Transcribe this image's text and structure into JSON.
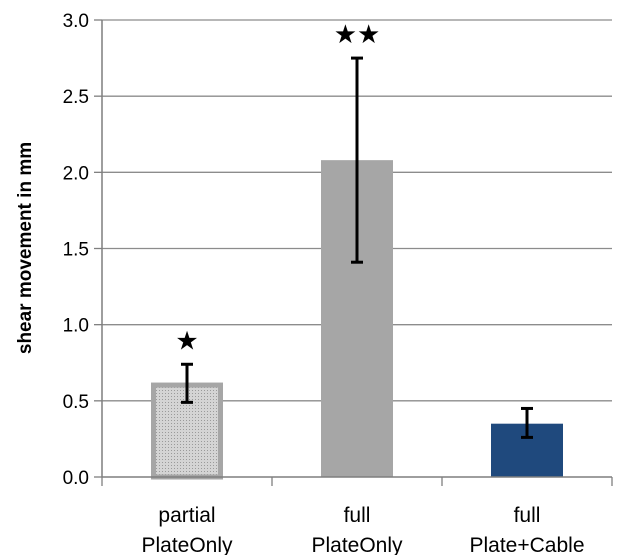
{
  "chart_data": {
    "type": "bar",
    "categories": [
      [
        "partial",
        "PlateOnly"
      ],
      [
        "full",
        "PlateOnly"
      ],
      [
        "full",
        "Plate+Cable"
      ]
    ],
    "values": [
      0.62,
      2.08,
      0.35
    ],
    "error_low": [
      0.49,
      1.41,
      0.26
    ],
    "error_high": [
      0.74,
      2.75,
      0.45
    ],
    "annotations": [
      "★",
      "★★",
      ""
    ],
    "bar_colors": [
      "#d0d0d0",
      "#a6a6a6",
      "#1f497d"
    ],
    "bar_patterns": [
      "dotted",
      "solid",
      "solid"
    ],
    "ylabel": "shear movement in mm",
    "xlabel": "",
    "title": "",
    "ylim": [
      0,
      3.0
    ],
    "yticks": [
      "0.0",
      "0.5",
      "1.0",
      "1.5",
      "2.0",
      "2.5",
      "3.0"
    ],
    "grid": true
  }
}
